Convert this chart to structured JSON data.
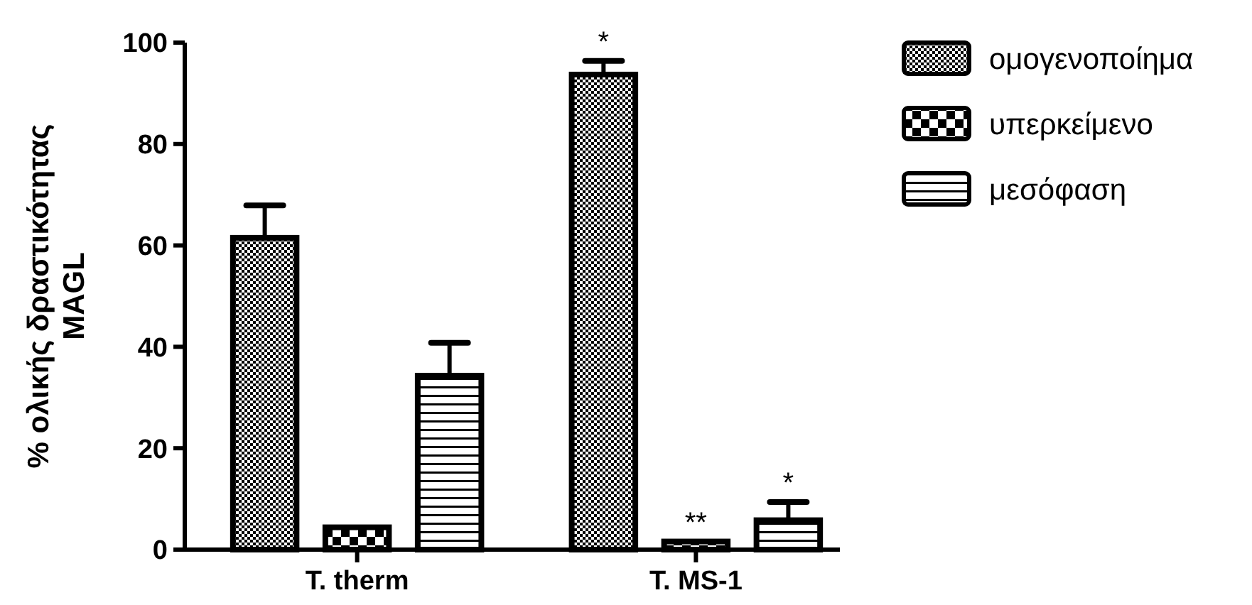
{
  "chart_data": {
    "type": "bar",
    "ylabel": "% ολικής δραστικότητας MAGL",
    "categories": [
      "T. therm",
      "T. MS-1"
    ],
    "series": [
      {
        "name": "ομογενοποίημα",
        "color": "#000000",
        "values": [
          61.5,
          93.7
        ],
        "errors": [
          [
            61.5,
            67.9
          ],
          [
            93.7,
            96.4
          ]
        ]
      },
      {
        "name": "υπερκείμενο",
        "color": "#000000",
        "values": [
          4.4,
          1.6
        ],
        "errors": [
          null,
          null
        ]
      },
      {
        "name": "μεσόφαση",
        "color": "#000000",
        "values": [
          34.3,
          5.8
        ],
        "errors": [
          [
            34.3,
            40.8
          ],
          [
            5.8,
            9.4
          ]
        ]
      }
    ],
    "ylim": [
      0,
      100
    ],
    "yticks": [
      0,
      20,
      40,
      60,
      80,
      100
    ],
    "grid": false,
    "legend": "top right",
    "annotations": [
      "*",
      "**",
      "*"
    ]
  }
}
